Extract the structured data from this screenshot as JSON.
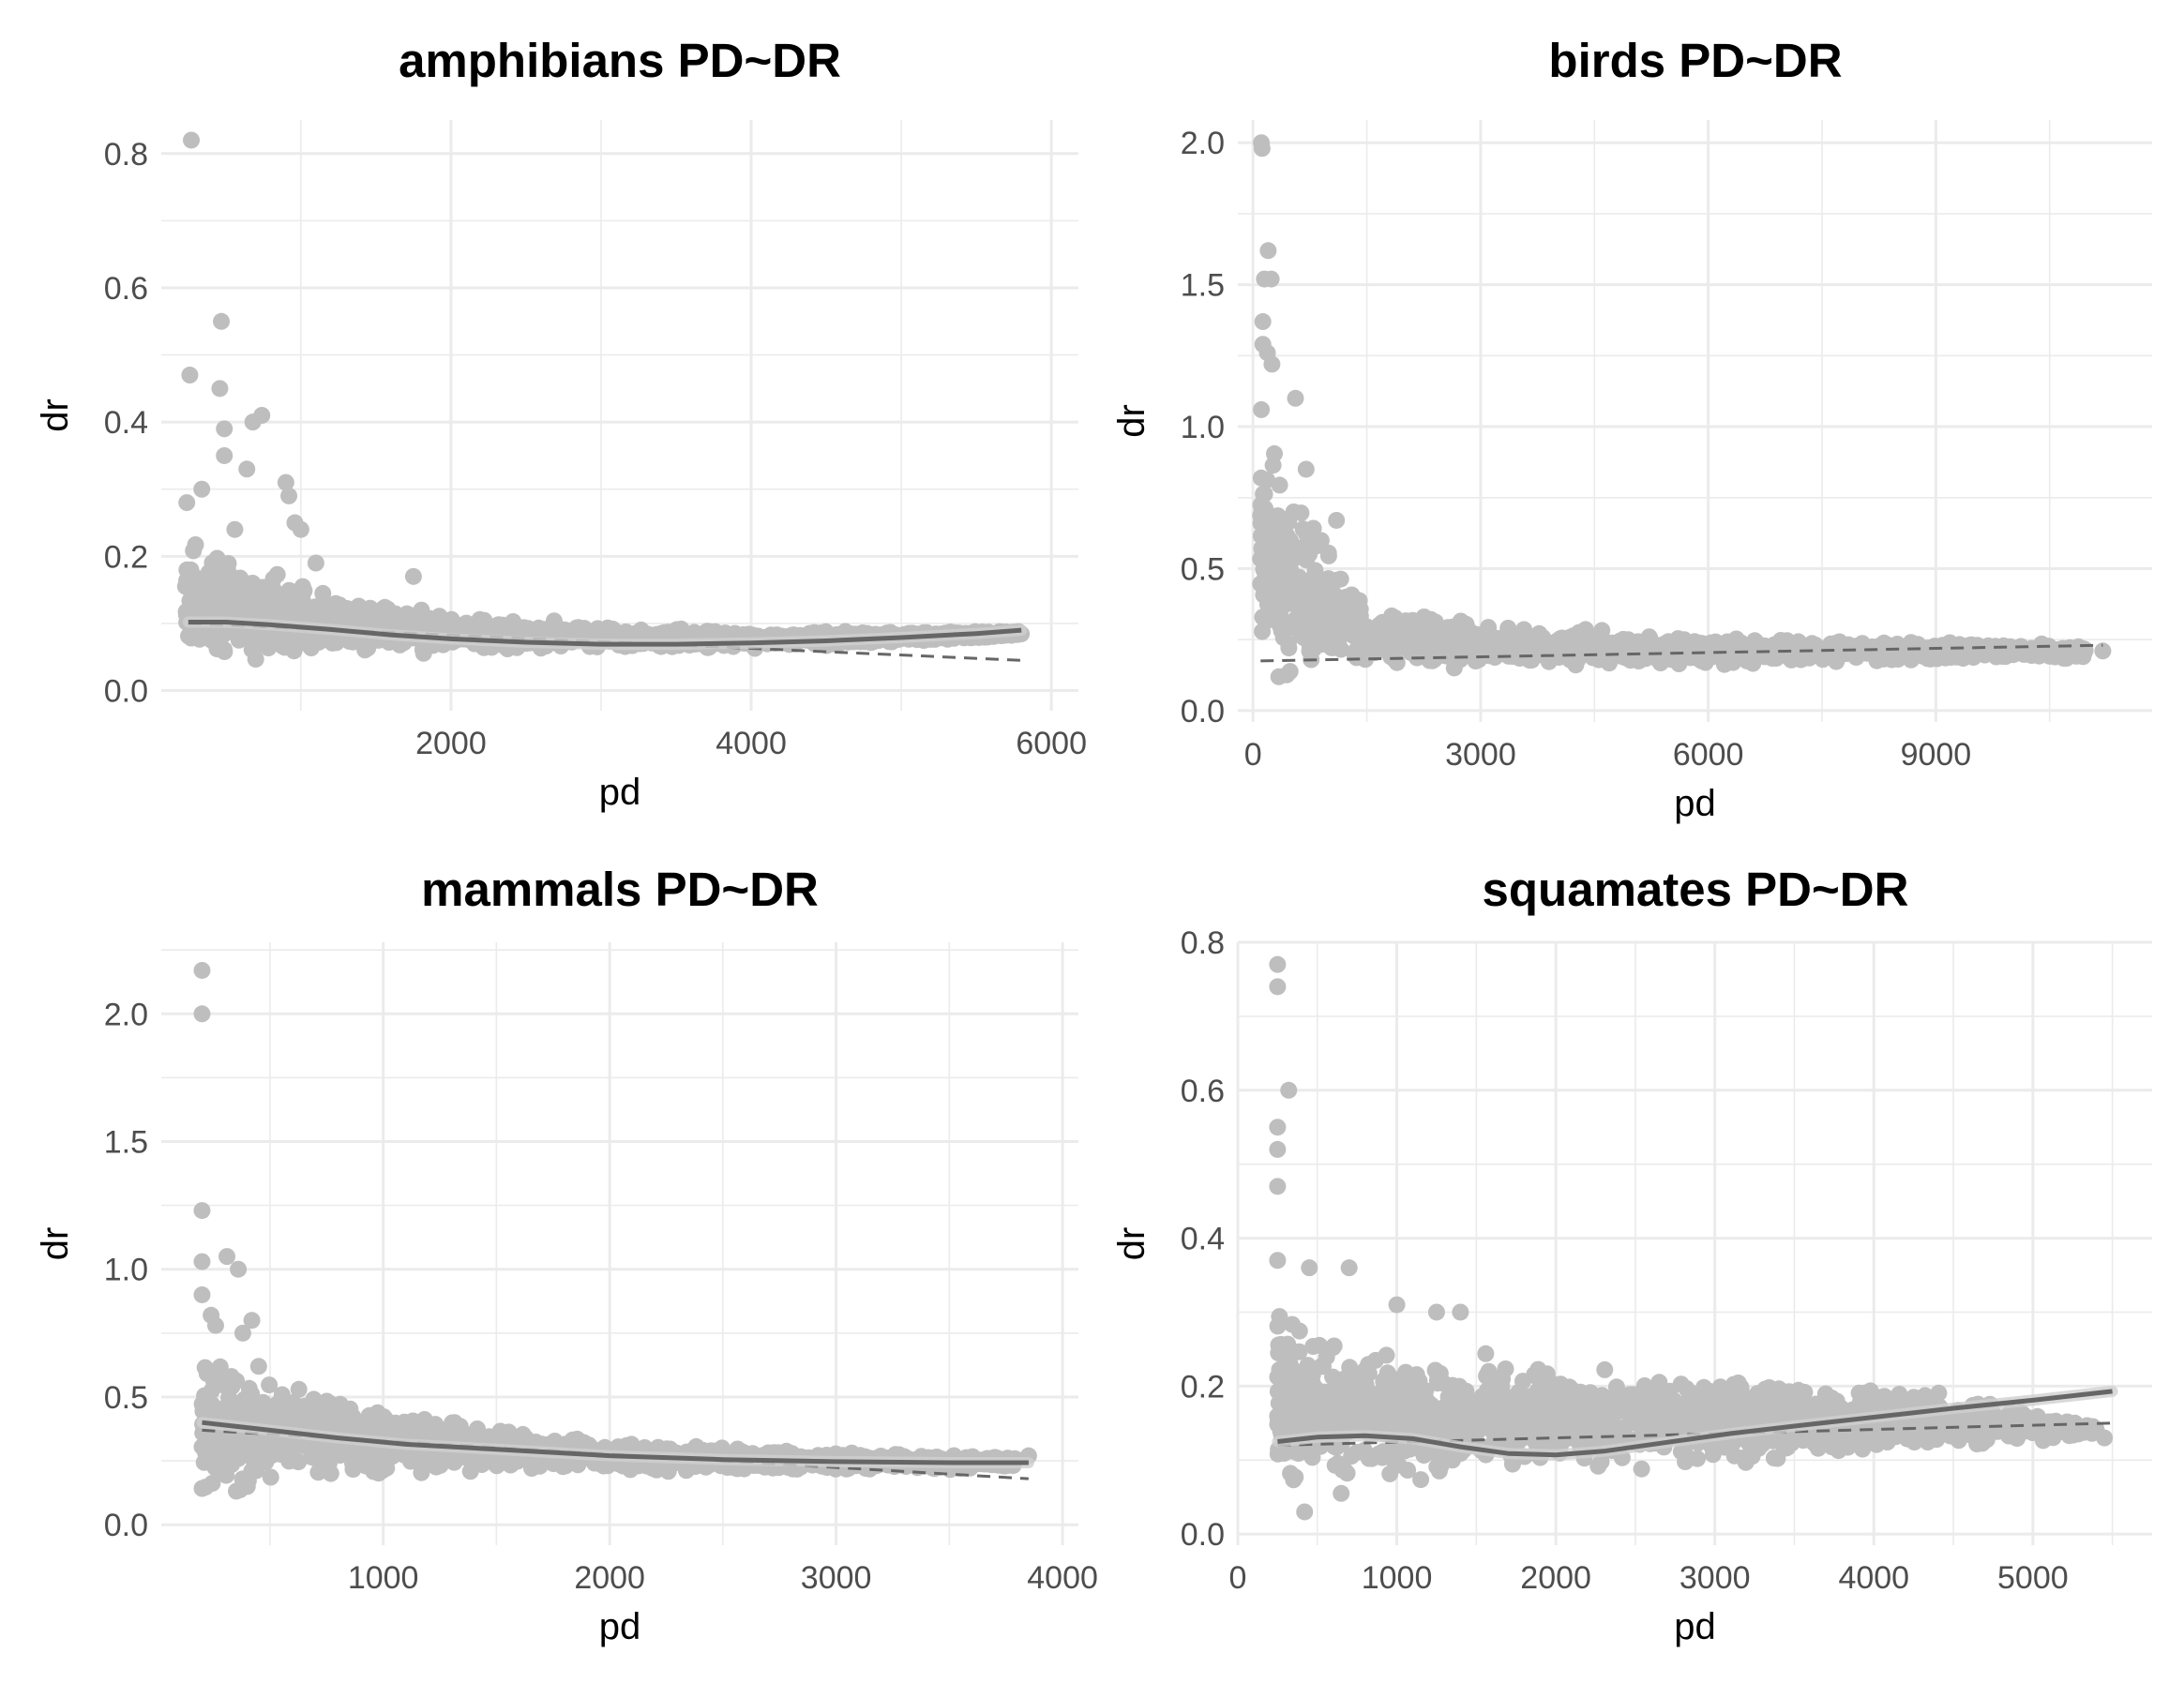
{
  "chart_data": [
    {
      "type": "scatter",
      "title": "amphibians PD~DR",
      "xlabel": "pd",
      "ylabel": "dr",
      "xlim": [
        70,
        6180
      ],
      "ylim": [
        -0.03,
        0.85
      ],
      "x_ticks": [
        2000,
        4000,
        6000
      ],
      "x_tick_labels": [
        "2000",
        "4000",
        "6000"
      ],
      "y_ticks": [
        0.0,
        0.2,
        0.4,
        0.6,
        0.8
      ],
      "y_tick_labels": [
        "0.0",
        "0.2",
        "0.4",
        "0.6",
        "0.8"
      ],
      "grid": true,
      "point_color": "#bebebe",
      "outliers": [
        [
          270,
          0.82
        ],
        [
          470,
          0.55
        ],
        [
          260,
          0.47
        ],
        [
          460,
          0.45
        ],
        [
          490,
          0.39
        ],
        [
          490,
          0.35
        ],
        [
          740,
          0.41
        ],
        [
          680,
          0.4
        ],
        [
          640,
          0.33
        ],
        [
          900,
          0.31
        ],
        [
          920,
          0.29
        ],
        [
          960,
          0.25
        ],
        [
          1000,
          0.24
        ],
        [
          1100,
          0.19
        ],
        [
          1750,
          0.17
        ],
        [
          340,
          0.3
        ],
        [
          560,
          0.24
        ],
        [
          240,
          0.28
        ]
      ],
      "cloud_envelope": {
        "x": [
          230,
          400,
          700,
          1000,
          1500,
          2000,
          3000,
          4000,
          5000,
          5800
        ],
        "upper": [
          0.27,
          0.23,
          0.2,
          0.17,
          0.14,
          0.12,
          0.1,
          0.09,
          0.09,
          0.09
        ],
        "lower": [
          0.01,
          0.02,
          0.03,
          0.04,
          0.05,
          0.05,
          0.06,
          0.06,
          0.07,
          0.08
        ]
      },
      "loess_fit": {
        "x": [
          250,
          500,
          800,
          1200,
          1600,
          2000,
          2500,
          3000,
          3500,
          4000,
          4500,
          5000,
          5500,
          5800
        ],
        "y": [
          0.102,
          0.102,
          0.098,
          0.091,
          0.083,
          0.077,
          0.072,
          0.069,
          0.069,
          0.071,
          0.074,
          0.079,
          0.085,
          0.09
        ]
      },
      "linear_fit": {
        "x": [
          250,
          5800
        ],
        "y": [
          0.1,
          0.045
        ]
      }
    },
    {
      "type": "scatter",
      "title": "birds PD~DR",
      "xlabel": "pd",
      "ylabel": "dr",
      "xlim": [
        -200,
        11850
      ],
      "ylim": [
        -0.04,
        2.08
      ],
      "x_ticks": [
        0,
        3000,
        6000,
        9000
      ],
      "x_tick_labels": [
        "0",
        "3000",
        "6000",
        "9000"
      ],
      "y_ticks": [
        0.0,
        0.5,
        1.0,
        1.5,
        2.0
      ],
      "y_tick_labels": [
        "0.0",
        "0.5",
        "1.0",
        "1.5",
        "2.0"
      ],
      "grid": true,
      "point_color": "#bebebe",
      "outliers": [
        [
          110,
          2.0
        ],
        [
          120,
          1.98
        ],
        [
          200,
          1.62
        ],
        [
          150,
          1.52
        ],
        [
          240,
          1.52
        ],
        [
          130,
          1.37
        ],
        [
          130,
          1.29
        ],
        [
          190,
          1.26
        ],
        [
          250,
          1.22
        ],
        [
          110,
          1.06
        ],
        [
          560,
          1.1
        ],
        [
          700,
          0.85
        ],
        [
          1100,
          0.67
        ],
        [
          11200,
          0.21
        ]
      ],
      "cloud_envelope": {
        "x": [
          100,
          300,
          600,
          1000,
          1500,
          2000,
          3000,
          5000,
          7000,
          9000,
          11000
        ],
        "upper": [
          1.05,
          0.95,
          0.8,
          0.6,
          0.42,
          0.36,
          0.32,
          0.28,
          0.26,
          0.25,
          0.23
        ],
        "lower": [
          0.05,
          0.06,
          0.08,
          0.1,
          0.12,
          0.13,
          0.14,
          0.15,
          0.16,
          0.17,
          0.18
        ]
      },
      "linear_fit": {
        "x": [
          100,
          11200
        ],
        "y": [
          0.175,
          0.23
        ]
      }
    },
    {
      "type": "scatter",
      "title": "mammals PD~DR",
      "xlabel": "pd",
      "ylabel": "dr",
      "xlim": [
        20,
        4070
      ],
      "ylim": [
        -0.08,
        2.28
      ],
      "x_ticks": [
        1000,
        2000,
        3000,
        4000
      ],
      "x_tick_labels": [
        "1000",
        "2000",
        "3000",
        "4000"
      ],
      "y_ticks": [
        0.0,
        0.5,
        1.0,
        1.5,
        2.0
      ],
      "y_tick_labels": [
        "0.0",
        "0.5",
        "1.0",
        "1.5",
        "2.0"
      ],
      "grid": true,
      "point_color": "#bebebe",
      "outliers": [
        [
          200,
          2.17
        ],
        [
          200,
          2.0
        ],
        [
          200,
          1.23
        ],
        [
          200,
          1.03
        ],
        [
          310,
          1.05
        ],
        [
          360,
          1.0
        ],
        [
          200,
          0.9
        ],
        [
          420,
          0.8
        ],
        [
          380,
          0.75
        ],
        [
          240,
          0.82
        ],
        [
          260,
          0.78
        ],
        [
          450,
          0.62
        ],
        [
          3850,
          0.27
        ],
        [
          400,
          0.15
        ]
      ],
      "cloud_envelope": {
        "x": [
          200,
          400,
          700,
          1000,
          1500,
          2000,
          2500,
          3000,
          3500,
          3800
        ],
        "upper": [
          0.75,
          0.62,
          0.55,
          0.47,
          0.4,
          0.34,
          0.31,
          0.29,
          0.28,
          0.27
        ],
        "lower": [
          0.03,
          0.1,
          0.15,
          0.18,
          0.19,
          0.2,
          0.2,
          0.21,
          0.21,
          0.22
        ]
      },
      "loess_fit": {
        "x": [
          200,
          500,
          800,
          1100,
          1500,
          2000,
          2500,
          3000,
          3500,
          3850
        ],
        "y": [
          0.4,
          0.37,
          0.34,
          0.315,
          0.295,
          0.27,
          0.255,
          0.247,
          0.243,
          0.243
        ]
      },
      "linear_fit": {
        "x": [
          200,
          3850
        ],
        "y": [
          0.37,
          0.18
        ]
      }
    },
    {
      "type": "scatter",
      "title": "squamates PD~DR",
      "xlabel": "pd",
      "ylabel": "dr",
      "xlim": [
        0,
        5750
      ],
      "ylim": [
        -0.015,
        0.8
      ],
      "x_ticks": [
        0,
        1000,
        2000,
        3000,
        4000,
        5000
      ],
      "x_tick_labels": [
        "0",
        "1000",
        "2000",
        "3000",
        "4000",
        "5000"
      ],
      "y_ticks": [
        0.0,
        0.2,
        0.4,
        0.6,
        0.8
      ],
      "y_tick_labels": [
        "0.0",
        "0.2",
        "0.4",
        "0.6",
        "0.8"
      ],
      "grid": true,
      "point_color": "#bebebe",
      "outliers": [
        [
          250,
          0.77
        ],
        [
          250,
          0.74
        ],
        [
          320,
          0.6
        ],
        [
          250,
          0.55
        ],
        [
          250,
          0.52
        ],
        [
          250,
          0.47
        ],
        [
          450,
          0.36
        ],
        [
          700,
          0.36
        ],
        [
          1000,
          0.31
        ],
        [
          250,
          0.37
        ],
        [
          1250,
          0.3
        ],
        [
          1400,
          0.3
        ],
        [
          650,
          0.055
        ],
        [
          420,
          0.03
        ],
        [
          1350,
          0.1
        ],
        [
          5450,
          0.13
        ]
      ],
      "cloud_envelope": {
        "x": [
          250,
          500,
          1000,
          1500,
          2000,
          2500,
          3000,
          3500,
          4000,
          4500,
          5000,
          5400
        ],
        "upper": [
          0.34,
          0.3,
          0.27,
          0.25,
          0.235,
          0.23,
          0.225,
          0.215,
          0.205,
          0.195,
          0.17,
          0.15
        ],
        "lower": [
          0.02,
          0.04,
          0.06,
          0.07,
          0.075,
          0.08,
          0.085,
          0.09,
          0.1,
          0.11,
          0.12,
          0.13
        ]
      },
      "loess_fit": {
        "x": [
          250,
          500,
          800,
          1100,
          1400,
          1700,
          2000,
          2300,
          2700,
          3100,
          3500,
          4000,
          4500,
          5000,
          5500
        ],
        "y": [
          0.125,
          0.131,
          0.133,
          0.129,
          0.118,
          0.109,
          0.107,
          0.112,
          0.124,
          0.136,
          0.146,
          0.158,
          0.17,
          0.181,
          0.193
        ]
      },
      "linear_fit": {
        "x": [
          250,
          5500
        ],
        "y": [
          0.12,
          0.15
        ]
      }
    }
  ]
}
